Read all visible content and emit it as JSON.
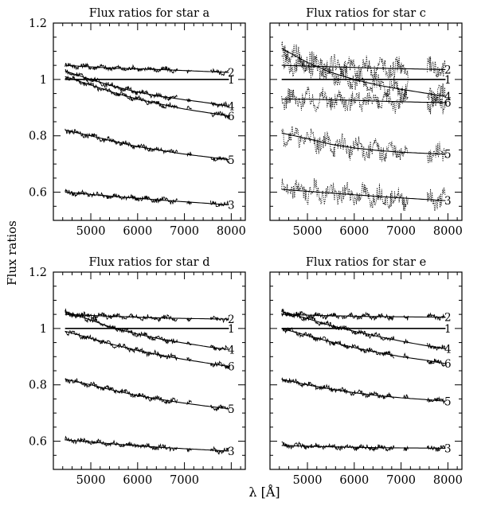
{
  "figure": {
    "ylabel": "Flux ratios",
    "xlabel": "λ [Å]"
  },
  "chart_data": [
    {
      "type": "line",
      "title": "Flux ratios for star a",
      "xlim": [
        4200,
        8300
      ],
      "ylim": [
        0.5,
        1.2
      ],
      "xticks": [
        5000,
        6000,
        7000,
        8000
      ],
      "yticks": [
        0.6,
        0.8,
        1,
        1.2
      ],
      "ytick_labels": [
        "0.6",
        "0.8",
        "1",
        "1.2"
      ],
      "style": "solid",
      "series": [
        {
          "name": "1",
          "x": [
            4450,
            7950
          ],
          "values": [
            1.0,
            1.0
          ]
        },
        {
          "name": "2",
          "x": [
            4450,
            5500,
            6500,
            7950
          ],
          "values": [
            1.05,
            1.04,
            1.035,
            1.025
          ]
        },
        {
          "name": "3",
          "x": [
            4450,
            5500,
            6500,
            7950
          ],
          "values": [
            0.6,
            0.585,
            0.572,
            0.555
          ]
        },
        {
          "name": "4",
          "x": [
            4450,
            5000,
            5500,
            6000,
            6500,
            7000,
            7500,
            7950
          ],
          "values": [
            1.03,
            1.0,
            0.975,
            0.955,
            0.94,
            0.928,
            0.917,
            0.905
          ]
        },
        {
          "name": "5",
          "x": [
            4450,
            5000,
            5500,
            6000,
            6500,
            7000,
            7500,
            7950
          ],
          "values": [
            0.82,
            0.8,
            0.78,
            0.762,
            0.748,
            0.735,
            0.725,
            0.715
          ]
        },
        {
          "name": "6",
          "x": [
            4450,
            5000,
            5500,
            6000,
            6500,
            7000,
            7500,
            7950
          ],
          "values": [
            1.01,
            0.98,
            0.953,
            0.93,
            0.912,
            0.895,
            0.882,
            0.87
          ]
        }
      ]
    },
    {
      "type": "line",
      "title": "Flux ratios for star c",
      "xlim": [
        4200,
        8300
      ],
      "ylim": [
        0.5,
        1.2
      ],
      "xticks": [
        5000,
        6000,
        7000,
        8000
      ],
      "yticks": [
        0.6,
        0.8,
        1,
        1.2
      ],
      "ytick_labels": [
        "0.6",
        "0.8",
        "1",
        "1.2"
      ],
      "style": "dotted",
      "series": [
        {
          "name": "1",
          "x": [
            4450,
            7950
          ],
          "values": [
            1.0,
            1.0
          ]
        },
        {
          "name": "2",
          "x": [
            4450,
            5500,
            6500,
            7950
          ],
          "values": [
            1.05,
            1.045,
            1.04,
            1.035
          ]
        },
        {
          "name": "3",
          "x": [
            4450,
            5500,
            6500,
            7950
          ],
          "values": [
            0.61,
            0.597,
            0.585,
            0.57
          ]
        },
        {
          "name": "4",
          "x": [
            4450,
            5000,
            5500,
            6000,
            6500,
            7000,
            7500,
            7950
          ],
          "values": [
            1.11,
            1.06,
            1.025,
            1.0,
            0.98,
            0.965,
            0.952,
            0.94
          ]
        },
        {
          "name": "5",
          "x": [
            4450,
            5000,
            5500,
            6000,
            6500,
            7000,
            7500,
            7950
          ],
          "values": [
            0.81,
            0.79,
            0.77,
            0.757,
            0.748,
            0.742,
            0.738,
            0.735
          ]
        },
        {
          "name": "6",
          "x": [
            4450,
            5000,
            5500,
            6000,
            6500,
            7000,
            7500,
            7950
          ],
          "values": [
            0.93,
            0.93,
            0.928,
            0.926,
            0.923,
            0.921,
            0.919,
            0.918
          ]
        }
      ]
    },
    {
      "type": "line",
      "title": "Flux ratios for star d",
      "xlim": [
        4200,
        8300
      ],
      "ylim": [
        0.5,
        1.2
      ],
      "xticks": [
        5000,
        6000,
        7000
      ],
      "yticks": [
        0.6,
        0.8,
        1,
        1.2
      ],
      "ytick_labels": [
        "0.6",
        "0.8",
        "1",
        "1.2"
      ],
      "style": "solid",
      "series": [
        {
          "name": "1",
          "x": [
            4450,
            7950
          ],
          "values": [
            1.0,
            1.0
          ]
        },
        {
          "name": "2",
          "x": [
            4450,
            5500,
            6500,
            7950
          ],
          "values": [
            1.05,
            1.043,
            1.037,
            1.033
          ]
        },
        {
          "name": "3",
          "x": [
            4450,
            5500,
            6500,
            7950
          ],
          "values": [
            0.605,
            0.59,
            0.578,
            0.565
          ]
        },
        {
          "name": "4",
          "x": [
            4450,
            5000,
            5500,
            6000,
            6500,
            7000,
            7500,
            7950
          ],
          "values": [
            1.06,
            1.03,
            1.0,
            0.98,
            0.962,
            0.948,
            0.935,
            0.925
          ]
        },
        {
          "name": "5",
          "x": [
            4450,
            5000,
            5500,
            6000,
            6500,
            7000,
            7500,
            7950
          ],
          "values": [
            0.82,
            0.8,
            0.78,
            0.762,
            0.748,
            0.735,
            0.724,
            0.715
          ]
        },
        {
          "name": "6",
          "x": [
            4450,
            5000,
            5500,
            6000,
            6500,
            7000,
            7500,
            7950
          ],
          "values": [
            0.99,
            0.965,
            0.942,
            0.922,
            0.905,
            0.89,
            0.877,
            0.865
          ]
        }
      ]
    },
    {
      "type": "line",
      "title": "Flux ratios for star e",
      "xlim": [
        4200,
        8300
      ],
      "ylim": [
        0.5,
        1.2
      ],
      "xticks": [
        5000,
        6000,
        7000,
        8000
      ],
      "yticks": [
        0.6,
        0.8,
        1,
        1.2
      ],
      "ytick_labels": [
        "0.6",
        "0.8",
        "1",
        "1.2"
      ],
      "style": "solid",
      "series": [
        {
          "name": "1",
          "x": [
            4450,
            7950
          ],
          "values": [
            1.0,
            1.0
          ]
        },
        {
          "name": "2",
          "x": [
            4450,
            5500,
            6500,
            7950
          ],
          "values": [
            1.05,
            1.045,
            1.042,
            1.04
          ]
        },
        {
          "name": "3",
          "x": [
            4450,
            5500,
            6500,
            7950
          ],
          "values": [
            0.585,
            0.58,
            0.577,
            0.575
          ]
        },
        {
          "name": "4",
          "x": [
            4450,
            5000,
            5500,
            6000,
            6500,
            7000,
            7500,
            7950
          ],
          "values": [
            1.06,
            1.035,
            1.01,
            0.99,
            0.972,
            0.955,
            0.94,
            0.928
          ]
        },
        {
          "name": "5",
          "x": [
            4450,
            5000,
            5500,
            6000,
            6500,
            7000,
            7500,
            7950
          ],
          "values": [
            0.82,
            0.8,
            0.785,
            0.772,
            0.762,
            0.754,
            0.748,
            0.742
          ]
        },
        {
          "name": "6",
          "x": [
            4450,
            5000,
            5500,
            6000,
            6500,
            7000,
            7500,
            7950
          ],
          "values": [
            1.0,
            0.975,
            0.952,
            0.932,
            0.915,
            0.9,
            0.888,
            0.875
          ]
        }
      ]
    }
  ]
}
